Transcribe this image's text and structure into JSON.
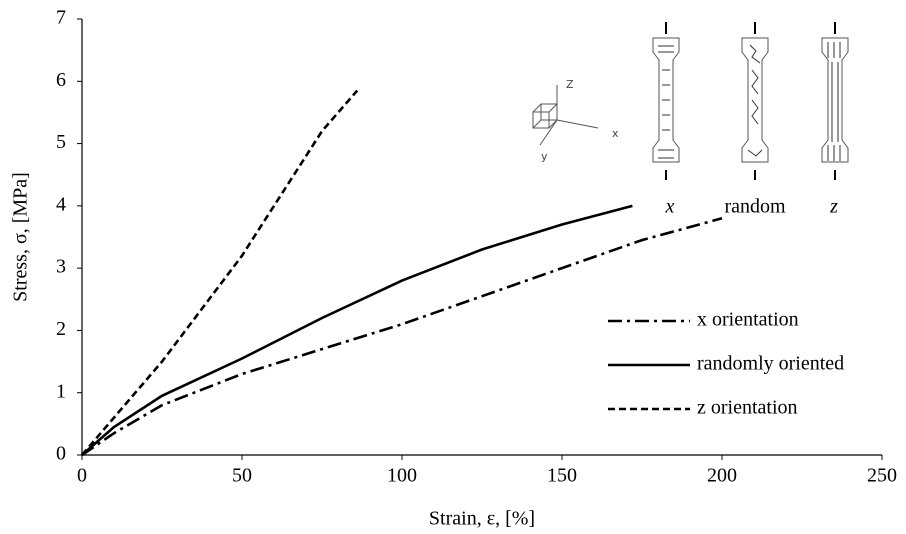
{
  "chart_data": {
    "type": "line",
    "xlabel": "Strain, ε, [%]",
    "ylabel": "Stress, σ, [MPa]",
    "xlim": [
      0,
      250
    ],
    "xticks": [
      0,
      50,
      100,
      150,
      200,
      250
    ],
    "ylim": [
      0,
      7
    ],
    "yticks": [
      0,
      1,
      2,
      3,
      4,
      5,
      6,
      7
    ],
    "grid": false,
    "legend": "right",
    "series": [
      {
        "name": "x orientation",
        "color": "#000000",
        "dash": "dash-dot",
        "x": [
          0,
          10,
          25,
          50,
          75,
          100,
          125,
          150,
          175,
          200
        ],
        "values": [
          0,
          0.35,
          0.8,
          1.3,
          1.7,
          2.1,
          2.55,
          3.0,
          3.45,
          3.8
        ]
      },
      {
        "name": "randomly oriented",
        "color": "#000000",
        "dash": "solid",
        "x": [
          0,
          10,
          25,
          50,
          75,
          100,
          125,
          150,
          172
        ],
        "values": [
          0,
          0.45,
          0.95,
          1.55,
          2.2,
          2.8,
          3.3,
          3.7,
          4.0
        ]
      },
      {
        "name": "z orientation",
        "color": "#000000",
        "dash": "dash",
        "x": [
          0,
          10,
          25,
          50,
          75,
          86
        ],
        "values": [
          0,
          0.6,
          1.5,
          3.2,
          5.2,
          5.85
        ]
      }
    ],
    "inset_labels": {
      "axis_z": "Z",
      "axis_x": "x",
      "axis_y": "y",
      "specimen_x": "x",
      "specimen_random": "random",
      "specimen_z": "z"
    }
  }
}
